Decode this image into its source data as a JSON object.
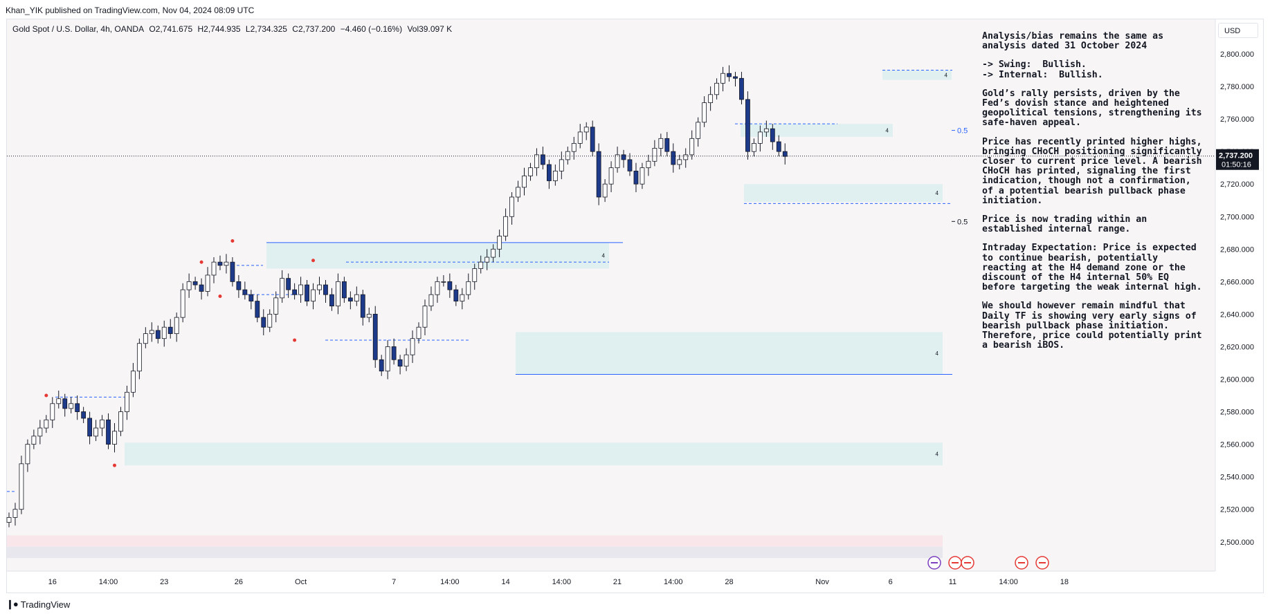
{
  "publisher": "Khan_YIK published on TradingView.com, Nov 04, 2024 08:09 UTC",
  "symbol": {
    "name": "Gold Spot / U.S. Dollar, 4h, OANDA",
    "open": "O2,741.675",
    "high": "H2,744.935",
    "low": "L2,734.325",
    "close": "C2,737.200",
    "change": "−4.460 (−0.16%)",
    "volume": "Vol39.097 K"
  },
  "currency": "USD",
  "last_price": "2,737.200",
  "countdown": "01:50:16",
  "analysis": [
    "Analysis/bias remains the same as analysis dated 31 October 2024",
    "-> Swing:  Bullish.\n-> Internal:  Bullish.",
    "Gold’s rally persists, driven by the Fed’s dovish stance and heightened geopolitical tensions, strengthening its safe-haven appeal.",
    "Price has recently printed higher highs, bringing CHoCH positioning significantly closer to current price level. A bearish CHoCH has printed, signaling the first indication, though not a confirmation, of a potential bearish pullback phase initiation.",
    "Price is now trading within an established internal range.",
    "Intraday Expectation: Price is expected to continue bearish, potentially reacting at the H4 demand zone or the discount of the H4 internal 50% EQ before targeting the weak internal high.",
    "We should however remain mindful that Daily TF is showing very early signs of bearish pullback phase initiation. Therefore, price could potentially print a bearish iBOS."
  ],
  "footer": "TradingView",
  "chart_data": {
    "type": "candlestick",
    "y_ticks": [
      "2,800.000",
      "2,780.000",
      "2,760.000",
      "2,740.000",
      "2,720.000",
      "2,700.000",
      "2,680.000",
      "2,660.000",
      "2,640.000",
      "2,620.000",
      "2,600.000",
      "2,580.000",
      "2,560.000",
      "2,540.000",
      "2,520.000",
      "2,500.000"
    ],
    "y_tick_values": [
      2800,
      2780,
      2760,
      2740,
      2720,
      2700,
      2680,
      2660,
      2640,
      2620,
      2600,
      2580,
      2560,
      2540,
      2520,
      2500
    ],
    "ylim": [
      2491.5,
      2808
    ],
    "x_ticks": [
      {
        "label": "16",
        "i": 7
      },
      {
        "label": "14:00",
        "i": 16
      },
      {
        "label": "23",
        "i": 25
      },
      {
        "label": "26",
        "i": 37
      },
      {
        "label": "Oct",
        "i": 47
      },
      {
        "label": "7",
        "i": 62
      },
      {
        "label": "14:00",
        "i": 71
      },
      {
        "label": "14",
        "i": 80
      },
      {
        "label": "14:00",
        "i": 89
      },
      {
        "label": "21",
        "i": 98
      },
      {
        "label": "14:00",
        "i": 107
      },
      {
        "label": "28",
        "i": 116
      },
      {
        "label": "Nov",
        "i": 131
      },
      {
        "label": "6",
        "i": 142
      },
      {
        "label": "11",
        "i": 152
      },
      {
        "label": "14:00",
        "i": 161
      },
      {
        "label": "18",
        "i": 170
      }
    ],
    "close_series": [
      2515,
      2520,
      2548,
      2560,
      2565,
      2570,
      2575,
      2585,
      2588,
      2582,
      2585,
      2580,
      2576,
      2565,
      2570,
      2575,
      2560,
      2568,
      2580,
      2592,
      2605,
      2622,
      2628,
      2630,
      2625,
      2632,
      2628,
      2638,
      2655,
      2660,
      2658,
      2654,
      2664,
      2672,
      2670,
      2672,
      2660,
      2655,
      2652,
      2648,
      2638,
      2632,
      2640,
      2650,
      2662,
      2655,
      2652,
      2658,
      2648,
      2655,
      2658,
      2652,
      2645,
      2660,
      2650,
      2648,
      2652,
      2638,
      2640,
      2612,
      2605,
      2620,
      2612,
      2608,
      2615,
      2625,
      2632,
      2645,
      2652,
      2660,
      2660,
      2655,
      2648,
      2652,
      2660,
      2668,
      2672,
      2675,
      2680,
      2688,
      2700,
      2712,
      2718,
      2725,
      2730,
      2738,
      2732,
      2722,
      2728,
      2735,
      2740,
      2745,
      2752,
      2755,
      2740,
      2712,
      2720,
      2730,
      2738,
      2735,
      2728,
      2720,
      2730,
      2734,
      2742,
      2748,
      2740,
      2732,
      2735,
      2738,
      2748,
      2758,
      2770,
      2775,
      2782,
      2788,
      2786,
      2785,
      2772,
      2740,
      2745,
      2752,
      2754,
      2746,
      2740,
      2737
    ],
    "levels": [
      {
        "kind": "supply-zone",
        "label": "4",
        "y_low": 2668,
        "y_high": 2684
      },
      {
        "kind": "demand-zone",
        "label": "4",
        "y_low": 2603,
        "y_high": 2629
      },
      {
        "kind": "demand-zone",
        "label": "4",
        "y_low": 2547,
        "y_high": 2561
      },
      {
        "kind": "supply-zone",
        "label": "4",
        "y_low": 2784,
        "y_high": 2790
      },
      {
        "kind": "zone",
        "label": "4",
        "y_low": 2749,
        "y_high": 2757
      },
      {
        "kind": "demand-zone",
        "label": "4",
        "y_low": 2709,
        "y_high": 2720
      },
      {
        "kind": "eq",
        "label": "0.5",
        "y": 2753
      },
      {
        "kind": "eq",
        "label": "0.5",
        "y": 2697
      }
    ],
    "colors": {
      "bull": "#ffffff",
      "bear": "#1e3a8a",
      "zone": "#dceff0",
      "line": "#2962ff",
      "pivot": "#e53935"
    }
  }
}
